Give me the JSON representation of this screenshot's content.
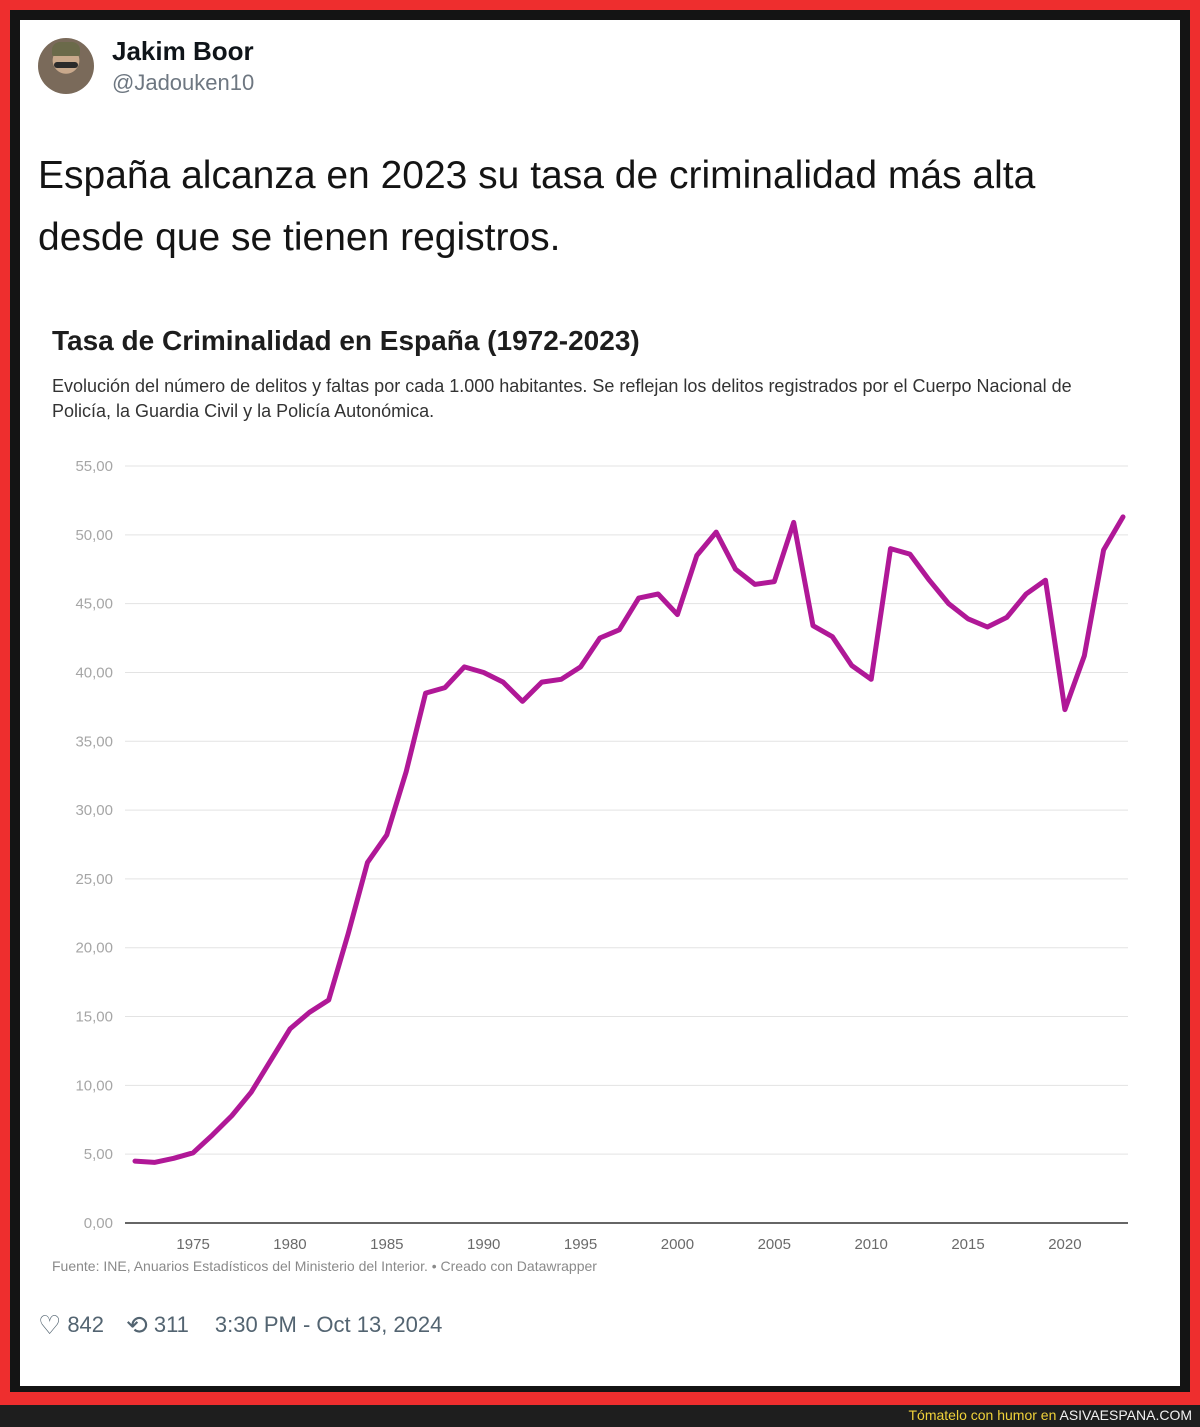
{
  "tweet": {
    "author_name": "Jakim Boor",
    "author_handle": "@Jadouken10",
    "text": "España alcanza en 2023 su tasa de criminalidad más alta desde que se tienen registros.",
    "likes": "842",
    "retweets": "311",
    "timestamp": "3:30 PM - Oct 13, 2024"
  },
  "chart": {
    "title": "Tasa de Criminalidad en España (1972-2023)",
    "subtitle": "Evolución del número de delitos y faltas por cada 1.000 habitantes. Se reflejan los delitos registrados por el Cuerpo Nacional de Policía, la Guardia Civil y la Policía Autonómica.",
    "source": "Fuente: INE, Anuarios Estadísticos del Ministerio del Interior. • Creado con Datawrapper"
  },
  "chart_data": {
    "type": "line",
    "title": "Tasa de Criminalidad en España (1972-2023)",
    "xlabel": "",
    "ylabel": "",
    "ylim": [
      0,
      55
    ],
    "xlim": [
      1972,
      2023
    ],
    "y_ticks": [
      "0,00",
      "5,00",
      "10,00",
      "15,00",
      "20,00",
      "25,00",
      "30,00",
      "35,00",
      "40,00",
      "45,00",
      "50,00",
      "55,00"
    ],
    "x_ticks": [
      "1975",
      "1980",
      "1985",
      "1990",
      "1995",
      "2000",
      "2005",
      "2010",
      "2015",
      "2020"
    ],
    "grid": true,
    "line_color": "#b01897",
    "x": [
      1972,
      1973,
      1974,
      1975,
      1976,
      1977,
      1978,
      1979,
      1980,
      1981,
      1982,
      1983,
      1984,
      1985,
      1986,
      1987,
      1988,
      1989,
      1990,
      1991,
      1992,
      1993,
      1994,
      1995,
      1996,
      1997,
      1998,
      1999,
      2000,
      2001,
      2002,
      2003,
      2004,
      2005,
      2006,
      2007,
      2008,
      2009,
      2010,
      2011,
      2012,
      2013,
      2014,
      2015,
      2016,
      2017,
      2018,
      2019,
      2020,
      2021,
      2022,
      2023
    ],
    "values": [
      4.5,
      4.4,
      4.7,
      5.1,
      6.4,
      7.8,
      9.5,
      11.8,
      14.1,
      15.3,
      16.2,
      21.0,
      26.2,
      28.2,
      32.8,
      38.5,
      38.9,
      40.4,
      40.0,
      39.3,
      37.9,
      39.3,
      39.5,
      40.4,
      42.5,
      43.1,
      45.4,
      45.7,
      44.2,
      48.5,
      50.2,
      47.5,
      46.4,
      46.6,
      50.9,
      43.4,
      42.6,
      40.5,
      39.5,
      49.0,
      48.6,
      46.7,
      45.0,
      43.9,
      43.3,
      44.0,
      45.7,
      46.7,
      37.3,
      41.2,
      48.9,
      51.3
    ]
  },
  "watermark": {
    "prefix": "Tómatelo con humor en",
    "site": "ASIVAESPANA.COM"
  },
  "colors": {
    "frame": "#ee2e2e",
    "line": "#b01897",
    "handle": "#6e7781"
  },
  "icons": {
    "like": "heart-icon",
    "retweet": "retweet-icon"
  }
}
